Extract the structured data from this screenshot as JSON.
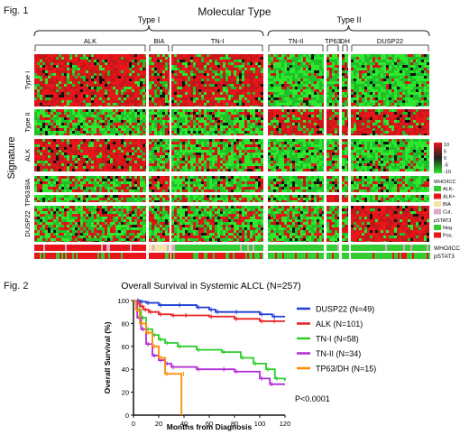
{
  "fig1": {
    "label": "Fig. 1",
    "title": "Molecular Type",
    "groups": [
      "Type I",
      "Type II"
    ],
    "columns": [
      "ALK",
      "BIA",
      "TN-I",
      "TN-II",
      "TP63",
      "DH",
      "DUSP22"
    ],
    "rows": [
      "Type I",
      "Type II",
      "ALK",
      "BIA",
      "TP63",
      "DUSP22"
    ],
    "y_axis_label": "Signature",
    "color_scale": {
      "ticks": [
        "10",
        "5",
        "0",
        "-5",
        "-10"
      ],
      "high": "#e8151b",
      "mid": "#222222",
      "low": "#2ee82e"
    },
    "legend": {
      "who_title": "WHO/ICC",
      "who_items": [
        {
          "label": "ALK-",
          "color": "#33cc33"
        },
        {
          "label": "ALK+",
          "color": "#e8151b"
        },
        {
          "label": "BIA",
          "color": "#f3e4a8"
        },
        {
          "label": "Cut.",
          "color": "#d9a8c8"
        }
      ],
      "pstat_title": "pSTAT3",
      "pstat_items": [
        {
          "label": "Neg.",
          "color": "#33cc33"
        },
        {
          "label": "Pos.",
          "color": "#e8151b"
        }
      ]
    },
    "annotation_rows": [
      "WHO/ICC",
      "pSTAT3"
    ]
  },
  "fig2": {
    "label": "Fig. 2",
    "chart_data": {
      "type": "line",
      "title": "Overall Survival in Systemic ALCL (N=257)",
      "xlabel": "Months from Diagnosis",
      "ylabel": "Overall Survival (%)",
      "xlim": [
        0,
        120
      ],
      "ylim": [
        0,
        100
      ],
      "xticks": [
        0,
        20,
        40,
        60,
        80,
        100,
        120
      ],
      "yticks": [
        0,
        20,
        40,
        60,
        80,
        100
      ],
      "annotation": "P<0.0001",
      "legend_position": "right",
      "series": [
        {
          "name": "DUSP22 (N=49)",
          "color": "#1f3fd6",
          "x": [
            0,
            2,
            5,
            10,
            20,
            35,
            50,
            60,
            65,
            80,
            100,
            110,
            120
          ],
          "y": [
            100,
            100,
            99,
            98,
            96,
            96,
            94,
            92,
            90,
            90,
            88,
            86,
            86
          ]
        },
        {
          "name": "ALK (N=101)",
          "color": "#e82020",
          "x": [
            0,
            2,
            5,
            8,
            12,
            20,
            30,
            40,
            60,
            80,
            100,
            110,
            120
          ],
          "y": [
            100,
            98,
            95,
            92,
            90,
            88,
            87,
            87,
            86,
            84,
            82,
            82,
            82
          ]
        },
        {
          "name": "TN-I (N=58)",
          "color": "#2ecc2e",
          "x": [
            0,
            3,
            6,
            10,
            15,
            20,
            25,
            35,
            50,
            70,
            85,
            95,
            105,
            112,
            120
          ],
          "y": [
            100,
            92,
            85,
            75,
            70,
            66,
            63,
            60,
            57,
            55,
            50,
            45,
            40,
            32,
            30
          ]
        },
        {
          "name": "TN-II (N=34)",
          "color": "#b02ad6",
          "x": [
            0,
            3,
            6,
            10,
            15,
            20,
            25,
            30,
            50,
            70,
            80,
            100,
            108,
            120
          ],
          "y": [
            100,
            85,
            75,
            62,
            52,
            48,
            45,
            42,
            40,
            40,
            38,
            32,
            27,
            27
          ]
        },
        {
          "name": "TP63/DH (N=15)",
          "color": "#ff8c00",
          "x": [
            0,
            2,
            5,
            10,
            15,
            20,
            25,
            38,
            38
          ],
          "y": [
            100,
            92,
            80,
            72,
            60,
            50,
            36,
            36,
            0
          ]
        }
      ]
    }
  }
}
